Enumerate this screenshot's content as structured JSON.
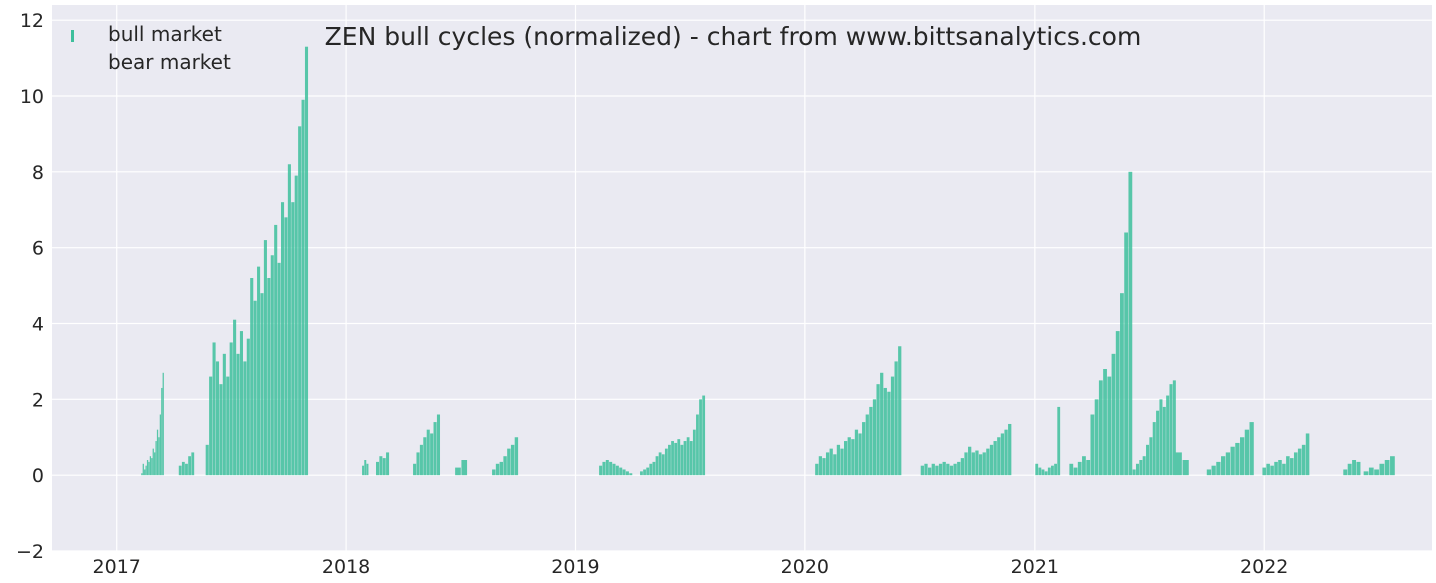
{
  "chart_data": {
    "type": "bar",
    "title": "ZEN bull cycles (normalized)  - chart from www.bittsanalytics.com",
    "xlabel": "",
    "ylabel": "",
    "ylim": [
      -2,
      12.4
    ],
    "xlim": [
      "2016-09-20",
      "2022-09-25"
    ],
    "grid": true,
    "legend_position": "top-left",
    "colors": {
      "bull": "#3dbf9c",
      "background": "#eaeaf2",
      "grid": "#ffffff"
    },
    "x_ticks": [
      "2017",
      "2018",
      "2019",
      "2020",
      "2021",
      "2022"
    ],
    "x_tick_dates": [
      "2017-01-01",
      "2018-01-01",
      "2019-01-01",
      "2020-01-01",
      "2021-01-01",
      "2022-01-01"
    ],
    "y_ticks": [
      -2,
      0,
      2,
      4,
      6,
      8,
      10,
      12
    ],
    "legend": [
      {
        "label": "bull market",
        "marker": "bar"
      },
      {
        "label": "bear market",
        "marker": "none"
      }
    ],
    "series": [
      {
        "name": "bull market",
        "segments": [
          {
            "start": "2017-02-10",
            "end": "2017-03-16",
            "values": [
              0.05,
              0.3,
              0.15,
              0.25,
              0.4,
              0.35,
              0.5,
              0.45,
              0.7,
              0.6,
              0.9,
              1.2,
              1.0,
              1.6,
              2.3,
              2.7
            ]
          },
          {
            "start": "2017-04-12",
            "end": "2017-05-02",
            "values": [
              0.25,
              0.35,
              0.3,
              0.5,
              0.6
            ]
          },
          {
            "start": "2017-05-25",
            "end": "2017-10-30",
            "values": [
              0.8,
              2.6,
              3.5,
              3.0,
              2.4,
              3.2,
              2.6,
              3.5,
              4.1,
              3.2,
              3.8,
              3.0,
              3.6,
              5.2,
              4.6,
              5.5,
              4.8,
              6.2,
              5.2,
              5.8,
              6.6,
              5.6,
              7.2,
              6.8,
              8.2,
              7.2,
              7.9,
              9.2,
              9.9,
              11.3
            ]
          },
          {
            "start": "2018-01-28",
            "end": "2018-02-04",
            "values": [
              0.25,
              0.4,
              0.3
            ]
          },
          {
            "start": "2018-02-20",
            "end": "2018-03-08",
            "values": [
              0.35,
              0.5,
              0.45,
              0.6
            ]
          },
          {
            "start": "2018-04-20",
            "end": "2018-05-28",
            "values": [
              0.3,
              0.6,
              0.8,
              1.0,
              1.2,
              1.1,
              1.4,
              1.6
            ]
          },
          {
            "start": "2018-06-28",
            "end": "2018-07-08",
            "values": [
              0.2,
              0.4
            ]
          },
          {
            "start": "2018-08-24",
            "end": "2018-09-29",
            "values": [
              0.15,
              0.3,
              0.35,
              0.5,
              0.7,
              0.8,
              1.0
            ]
          },
          {
            "start": "2019-02-10",
            "end": "2019-03-30",
            "values": [
              0.25,
              0.35,
              0.4,
              0.35,
              0.3,
              0.25,
              0.2,
              0.15,
              0.1,
              0.05
            ]
          },
          {
            "start": "2019-04-16",
            "end": "2019-07-24",
            "values": [
              0.1,
              0.15,
              0.2,
              0.3,
              0.35,
              0.5,
              0.6,
              0.55,
              0.7,
              0.8,
              0.9,
              0.85,
              0.95,
              0.8,
              0.9,
              1.0,
              0.9,
              1.2,
              1.6,
              2.0,
              2.1
            ]
          },
          {
            "start": "2020-01-20",
            "end": "2020-05-31",
            "values": [
              0.3,
              0.5,
              0.45,
              0.6,
              0.7,
              0.55,
              0.8,
              0.7,
              0.9,
              1.0,
              0.95,
              1.2,
              1.1,
              1.4,
              1.6,
              1.8,
              2.0,
              2.4,
              2.7,
              2.3,
              2.2,
              2.6,
              3.0,
              3.4
            ]
          },
          {
            "start": "2020-07-06",
            "end": "2020-11-22",
            "values": [
              0.25,
              0.3,
              0.2,
              0.3,
              0.25,
              0.3,
              0.35,
              0.3,
              0.25,
              0.3,
              0.35,
              0.45,
              0.6,
              0.75,
              0.6,
              0.65,
              0.55,
              0.6,
              0.7,
              0.8,
              0.9,
              1.0,
              1.1,
              1.2,
              1.35
            ]
          },
          {
            "start": "2021-01-04",
            "end": "2021-02-08",
            "values": [
              0.3,
              0.2,
              0.15,
              0.1,
              0.2,
              0.25,
              0.3,
              1.8
            ]
          },
          {
            "start": "2021-02-28",
            "end": "2021-06-02",
            "values": [
              0.3,
              0.2,
              0.35,
              0.5,
              0.4,
              1.6,
              2.0,
              2.5,
              2.8,
              2.6,
              3.2,
              3.8,
              4.8,
              6.4,
              8.0
            ]
          },
          {
            "start": "2021-06-08",
            "end": "2021-08-11",
            "values": [
              0.15,
              0.3,
              0.4,
              0.5,
              0.8,
              1.0,
              1.4,
              1.7,
              2.0,
              1.8,
              2.1,
              2.4,
              2.5
            ]
          },
          {
            "start": "2021-08-18",
            "end": "2021-08-29",
            "values": [
              0.6,
              0.4
            ]
          },
          {
            "start": "2021-10-05",
            "end": "2021-12-12",
            "values": [
              0.15,
              0.25,
              0.35,
              0.5,
              0.6,
              0.75,
              0.85,
              1.0,
              1.2,
              1.4
            ]
          },
          {
            "start": "2022-01-01",
            "end": "2022-03-11",
            "values": [
              0.2,
              0.3,
              0.25,
              0.35,
              0.4,
              0.3,
              0.5,
              0.45,
              0.6,
              0.7,
              0.8,
              1.1
            ]
          },
          {
            "start": "2022-05-10",
            "end": "2022-05-31",
            "values": [
              0.15,
              0.3,
              0.4,
              0.35
            ]
          },
          {
            "start": "2022-06-12",
            "end": "2022-07-24",
            "values": [
              0.1,
              0.2,
              0.15,
              0.3,
              0.4,
              0.5
            ]
          }
        ]
      },
      {
        "name": "bear market",
        "segments": []
      }
    ]
  }
}
